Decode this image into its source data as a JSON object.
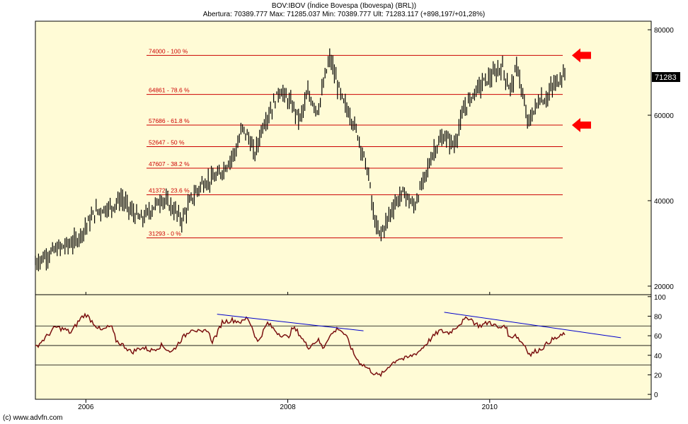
{
  "header": {
    "title": "BOV:IBOV (Índice Bovespa (Ibovespa) (BRL))",
    "quote": "Abertura: 70389.777 Max: 71285.037 Min: 70389.777 Ult: 71283.117 (+898,197/+01,28%)"
  },
  "footer": {
    "copyright": "(c) www.advfn.com"
  },
  "last_price_badge": "71283",
  "colors": {
    "panel_bg": "#fffbd6",
    "fib_line": "#cc0000",
    "price_bars": "#000000",
    "rsi_line": "#7a1010",
    "trend_line": "#0000cc",
    "arrow": "#ff0000",
    "badge_bg": "#000000"
  },
  "chart_data": [
    {
      "type": "line",
      "subtype": "ohlc-bars",
      "x_axis": {
        "ticks": [
          "2006",
          "2008",
          "2010"
        ],
        "range": [
          2005.5,
          2011.6
        ]
      },
      "y_axis": {
        "ticks": [
          20000,
          40000,
          60000,
          80000
        ],
        "range": [
          18000,
          82000
        ]
      },
      "grid": false,
      "price_path": {
        "x": [
          2005.5,
          2005.7,
          2005.9,
          2006.0,
          2006.1,
          2006.25,
          2006.35,
          2006.45,
          2006.55,
          2006.65,
          2006.75,
          2006.85,
          2006.95,
          2007.05,
          2007.15,
          2007.3,
          2007.4,
          2007.5,
          2007.55,
          2007.62,
          2007.67,
          2007.75,
          2007.85,
          2007.92,
          2007.97,
          2008.05,
          2008.12,
          2008.2,
          2008.3,
          2008.38,
          2008.42,
          2008.48,
          2008.55,
          2008.62,
          2008.7,
          2008.75,
          2008.8,
          2008.85,
          2008.9,
          2008.95,
          2009.05,
          2009.15,
          2009.25,
          2009.35,
          2009.45,
          2009.55,
          2009.65,
          2009.75,
          2009.85,
          2009.95,
          2010.05,
          2010.12,
          2010.2,
          2010.28,
          2010.32,
          2010.38,
          2010.45,
          2010.5,
          2010.55,
          2010.62,
          2010.7,
          2010.75
        ],
        "y": [
          25500,
          28500,
          30500,
          34000,
          37500,
          38500,
          40500,
          37500,
          35500,
          38000,
          40500,
          38500,
          35500,
          40500,
          44000,
          45500,
          48500,
          52500,
          57000,
          54500,
          50500,
          57500,
          62000,
          66000,
          64500,
          62000,
          59000,
          65000,
          61000,
          70000,
          73500,
          68000,
          63000,
          60000,
          55000,
          50500,
          46000,
          36500,
          32000,
          33500,
          39000,
          42000,
          38500,
          45000,
          52000,
          55000,
          53000,
          61500,
          65500,
          68000,
          69500,
          71500,
          66000,
          71500,
          65000,
          58000,
          61500,
          64000,
          63500,
          66500,
          68500,
          71300
        ]
      },
      "fib_levels": [
        {
          "value": 74000,
          "label": "74000 - 100 %"
        },
        {
          "value": 64861,
          "label": "64861 - 78.6 %"
        },
        {
          "value": 57686,
          "label": "57686 - 61.8 %"
        },
        {
          "value": 52647,
          "label": "52647 - 50 %"
        },
        {
          "value": 47607,
          "label": "47607 - 38.2 %"
        },
        {
          "value": 41372,
          "label": "41372 - 23.6 %"
        },
        {
          "value": 31293,
          "label": "31293 - 0 %"
        }
      ],
      "arrow_levels": [
        74000,
        57686
      ]
    },
    {
      "type": "line",
      "subtype": "oscillator",
      "x_axis": {
        "ticks": [
          "2006",
          "2008",
          "2010"
        ],
        "range": [
          2005.5,
          2011.6
        ]
      },
      "y_axis": {
        "ticks": [
          0,
          20,
          40,
          60,
          80,
          100
        ],
        "range": [
          -5,
          102
        ]
      },
      "reference_lines": [
        30,
        50,
        70
      ],
      "series": {
        "x": [
          2005.5,
          2005.6,
          2005.7,
          2005.8,
          2005.85,
          2005.95,
          2006.0,
          2006.05,
          2006.15,
          2006.25,
          2006.3,
          2006.4,
          2006.45,
          2006.55,
          2006.65,
          2006.75,
          2006.85,
          2006.95,
          2007.0,
          2007.05,
          2007.15,
          2007.2,
          2007.25,
          2007.3,
          2007.35,
          2007.45,
          2007.55,
          2007.6,
          2007.65,
          2007.7,
          2007.8,
          2007.9,
          2008.0,
          2008.05,
          2008.1,
          2008.2,
          2008.3,
          2008.35,
          2008.4,
          2008.45,
          2008.5,
          2008.55,
          2008.6,
          2008.65,
          2008.7,
          2008.75,
          2008.8,
          2008.85,
          2008.9,
          2008.95,
          2009.0,
          2009.05,
          2009.1,
          2009.15,
          2009.2,
          2009.3,
          2009.4,
          2009.5,
          2009.6,
          2009.7,
          2009.75,
          2009.8,
          2009.85,
          2009.9,
          2010.0,
          2010.1,
          2010.15,
          2010.2,
          2010.25,
          2010.3,
          2010.35,
          2010.4,
          2010.45,
          2010.5,
          2010.55,
          2010.6,
          2010.7,
          2010.75
        ],
        "y": [
          48,
          58,
          69,
          66,
          63,
          78,
          82,
          76,
          65,
          70,
          55,
          48,
          43,
          48,
          45,
          50,
          43,
          57,
          62,
          68,
          62,
          67,
          54,
          62,
          74,
          76,
          74,
          79,
          68,
          53,
          73,
          63,
          58,
          68,
          64,
          48,
          56,
          47,
          58,
          63,
          68,
          63,
          55,
          42,
          34,
          30,
          26,
          22,
          19,
          22,
          29,
          33,
          37,
          36,
          38,
          44,
          55,
          65,
          63,
          72,
          76,
          79,
          73,
          70,
          74,
          67,
          72,
          57,
          62,
          55,
          50,
          40,
          44,
          46,
          50,
          55,
          59,
          63
        ]
      },
      "trend_lines": [
        {
          "x": [
            2007.3,
            2008.75
          ],
          "y": [
            82,
            65
          ]
        },
        {
          "x": [
            2009.55,
            2011.3
          ],
          "y": [
            84,
            58
          ]
        }
      ]
    }
  ]
}
